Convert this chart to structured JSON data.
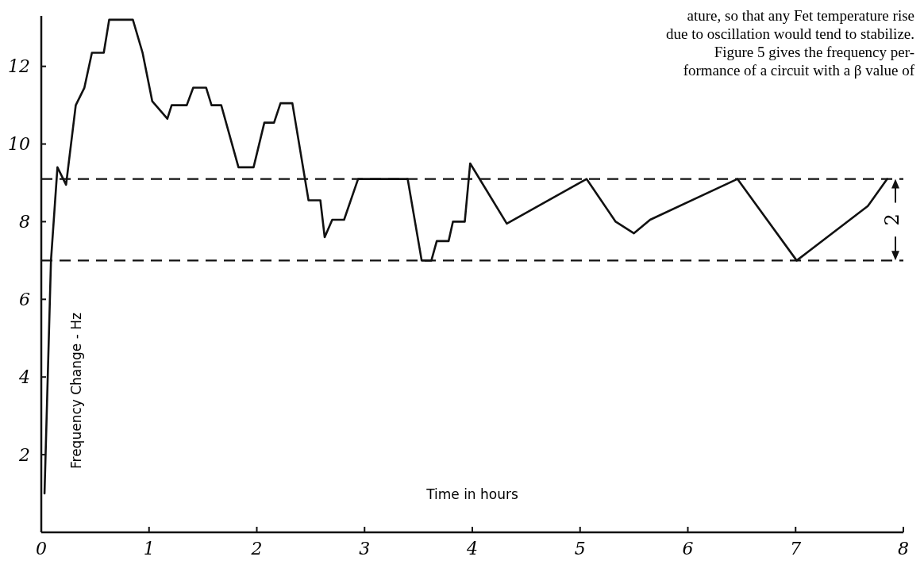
{
  "chart_data": {
    "type": "line",
    "xlabel": "Time in hours",
    "ylabel": "Frequency Change - Hz",
    "x": [
      0.03,
      0.09,
      0.15,
      0.23,
      0.32,
      0.4,
      0.47,
      0.58,
      0.63,
      0.85,
      0.94,
      1.03,
      1.17,
      1.21,
      1.35,
      1.41,
      1.53,
      1.58,
      1.67,
      1.83,
      1.97,
      2.07,
      2.16,
      2.22,
      2.33,
      2.48,
      2.59,
      2.63,
      2.7,
      2.81,
      2.94,
      3.4,
      3.53,
      3.62,
      3.67,
      3.78,
      3.82,
      3.93,
      3.98,
      4.32,
      5.06,
      5.33,
      5.5,
      5.65,
      6.46,
      7.01,
      7.67,
      7.85
    ],
    "series": [
      {
        "color": "#111111",
        "values": [
          1.0,
          7.0,
          9.4,
          8.95,
          11.0,
          11.45,
          12.35,
          12.35,
          13.2,
          13.2,
          12.35,
          11.1,
          10.65,
          11.0,
          11.0,
          11.45,
          11.45,
          11.0,
          11.0,
          9.4,
          9.4,
          10.55,
          10.55,
          11.05,
          11.05,
          8.55,
          8.55,
          7.6,
          8.05,
          8.05,
          9.1,
          9.1,
          7.0,
          7.0,
          7.5,
          7.5,
          8.0,
          8.0,
          9.5,
          7.95,
          9.1,
          8.0,
          7.7,
          8.05,
          9.1,
          7.0,
          8.4,
          9.1
        ]
      }
    ],
    "xlim": [
      0,
      8
    ],
    "xticks": [
      0,
      1,
      2,
      3,
      4,
      5,
      6,
      7,
      8
    ],
    "ylim": [
      0,
      13.3
    ],
    "yticks": [
      2,
      4,
      6,
      8,
      10,
      12
    ],
    "ref_lines": [
      {
        "axis": "y",
        "value": 9.1,
        "line_style": "dashed",
        "color": "#111111"
      },
      {
        "axis": "y",
        "value": 7.0,
        "line_style": "dashed",
        "color": "#111111"
      }
    ],
    "annotations": [
      "2",
      "ature, so that any Fet temperature rise",
      "due to oscillation would tend to stabilize.",
      "Figure 5 gives the frequency per-",
      "formance of a circuit with a β value of"
    ],
    "grid": false,
    "marker": "none",
    "line_style": "solid"
  }
}
